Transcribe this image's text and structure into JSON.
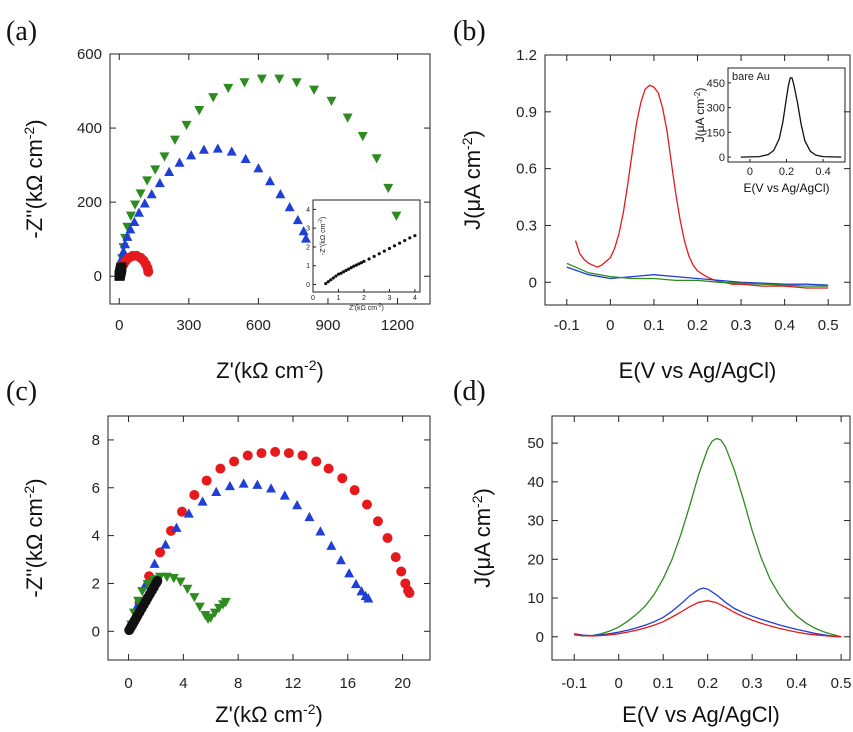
{
  "colors": {
    "red": "#e41a1c",
    "green": "#2e8b1f",
    "blue": "#1f3fd6",
    "black": "#111111"
  },
  "chart_data": [
    {
      "panel": "(a)",
      "type": "scatter",
      "xlabel": "Z'(kΩ cm⁻²)",
      "ylabel": "-Z''(kΩ cm⁻²)",
      "xticks": [
        0,
        300,
        600,
        900,
        1200
      ],
      "yticks": [
        0,
        200,
        400,
        600
      ],
      "xlim": [
        -40,
        1340
      ],
      "ylim": [
        -75,
        600
      ],
      "series": [
        {
          "color": "green",
          "marker": "triangle-down",
          "x": [
            5,
            8,
            12,
            18,
            25,
            35,
            50,
            68,
            92,
            120,
            155,
            195,
            240,
            290,
            345,
            405,
            470,
            540,
            615,
            690,
            765,
            840,
            915,
            985,
            1050,
            1110,
            1160,
            1195
          ],
          "y": [
            5,
            25,
            50,
            80,
            105,
            135,
            165,
            195,
            225,
            260,
            290,
            325,
            370,
            410,
            450,
            485,
            510,
            525,
            535,
            535,
            525,
            505,
            475,
            430,
            380,
            320,
            240,
            165
          ]
        },
        {
          "color": "blue",
          "marker": "triangle-up",
          "x": [
            3,
            5,
            8,
            12,
            18,
            25,
            35,
            48,
            65,
            85,
            110,
            140,
            175,
            215,
            260,
            310,
            365,
            425,
            485,
            545,
            600,
            650,
            695,
            735,
            770,
            795,
            805
          ],
          "y": [
            3,
            15,
            30,
            48,
            65,
            85,
            105,
            125,
            145,
            170,
            195,
            220,
            250,
            280,
            305,
            325,
            340,
            343,
            335,
            315,
            290,
            255,
            220,
            185,
            150,
            120,
            100
          ]
        },
        {
          "color": "red",
          "marker": "circle",
          "x": [
            2,
            5,
            10,
            18,
            28,
            42,
            58,
            75,
            92,
            105,
            115,
            122,
            125
          ],
          "y": [
            2,
            10,
            20,
            32,
            42,
            50,
            55,
            55,
            50,
            42,
            32,
            22,
            12
          ]
        },
        {
          "color": "black",
          "marker": "square",
          "x": [
            1,
            2,
            3,
            4,
            5,
            6,
            7,
            8,
            9
          ],
          "y": [
            1,
            3,
            6,
            9,
            12,
            15,
            18,
            21,
            24
          ]
        }
      ],
      "inset": {
        "xlabel": "Z'(kΩ cm⁻²)",
        "ylabel": "-Z''(kΩ cm⁻²)",
        "xticks": [
          0,
          1,
          2,
          3,
          4
        ],
        "yticks": [
          0,
          1,
          2,
          3,
          4
        ],
        "xlim": [
          0,
          4.2
        ],
        "ylim": [
          -0.4,
          4.5
        ],
        "x": [
          0.5,
          0.6,
          0.7,
          0.8,
          0.9,
          1.0,
          1.1,
          1.2,
          1.3,
          1.4,
          1.5,
          1.6,
          1.7,
          1.8,
          1.9,
          2.0,
          2.2,
          2.4,
          2.6,
          2.8,
          3.0,
          3.2,
          3.4,
          3.6,
          3.8,
          4.0
        ],
        "y": [
          0.05,
          0.15,
          0.25,
          0.35,
          0.45,
          0.55,
          0.6,
          0.68,
          0.75,
          0.82,
          0.9,
          0.97,
          1.03,
          1.1,
          1.16,
          1.23,
          1.36,
          1.5,
          1.64,
          1.78,
          1.92,
          2.06,
          2.2,
          2.34,
          2.48,
          2.6
        ]
      }
    },
    {
      "panel": "(b)",
      "type": "line",
      "xlabel": "E(V vs Ag/AgCl)",
      "ylabel": "J(μA cm⁻²)",
      "xticks": [
        -0.1,
        0.0,
        0.1,
        0.2,
        0.3,
        0.4,
        0.5
      ],
      "yticks": [
        0.0,
        0.3,
        0.6,
        0.9,
        1.2
      ],
      "xlim": [
        -0.15,
        0.55
      ],
      "ylim": [
        -0.12,
        1.2
      ],
      "series": [
        {
          "color": "red",
          "x": [
            -0.08,
            -0.07,
            -0.06,
            -0.05,
            -0.04,
            -0.03,
            -0.02,
            -0.01,
            0.0,
            0.01,
            0.02,
            0.03,
            0.04,
            0.05,
            0.06,
            0.07,
            0.08,
            0.09,
            0.1,
            0.11,
            0.12,
            0.13,
            0.14,
            0.15,
            0.16,
            0.17,
            0.18,
            0.19,
            0.2,
            0.22,
            0.24,
            0.26,
            0.28,
            0.3,
            0.35,
            0.4,
            0.45,
            0.5
          ],
          "y": [
            0.22,
            0.15,
            0.12,
            0.1,
            0.09,
            0.08,
            0.09,
            0.11,
            0.13,
            0.18,
            0.26,
            0.37,
            0.52,
            0.68,
            0.84,
            0.95,
            1.02,
            1.04,
            1.03,
            1.0,
            0.92,
            0.8,
            0.63,
            0.47,
            0.33,
            0.22,
            0.14,
            0.09,
            0.06,
            0.03,
            0.01,
            0.0,
            -0.01,
            -0.01,
            -0.02,
            -0.02,
            -0.03,
            -0.03
          ]
        },
        {
          "color": "blue",
          "x": [
            -0.1,
            -0.05,
            0.0,
            0.05,
            0.1,
            0.15,
            0.2,
            0.25,
            0.3,
            0.35,
            0.4,
            0.45,
            0.5
          ],
          "y": [
            0.08,
            0.04,
            0.02,
            0.03,
            0.04,
            0.03,
            0.02,
            0.01,
            0.0,
            -0.005,
            -0.01,
            -0.01,
            -0.015
          ]
        },
        {
          "color": "green",
          "x": [
            -0.1,
            -0.05,
            0.0,
            0.05,
            0.1,
            0.15,
            0.2,
            0.25,
            0.3,
            0.35,
            0.4,
            0.45,
            0.5
          ],
          "y": [
            0.1,
            0.05,
            0.03,
            0.02,
            0.02,
            0.01,
            0.01,
            0.0,
            -0.005,
            -0.01,
            -0.015,
            -0.02,
            -0.02
          ]
        }
      ],
      "inset": {
        "title": "bare Au",
        "xlabel": "E(V vs Ag/AgCl)",
        "ylabel": "J(μA cm⁻²)",
        "xticks": [
          0.0,
          0.2,
          0.4
        ],
        "yticks": [
          0,
          150,
          300,
          450
        ],
        "xlim": [
          -0.12,
          0.52
        ],
        "ylim": [
          -30,
          540
        ],
        "x": [
          -0.05,
          0.0,
          0.05,
          0.1,
          0.13,
          0.16,
          0.18,
          0.2,
          0.21,
          0.22,
          0.23,
          0.24,
          0.26,
          0.28,
          0.3,
          0.33,
          0.36,
          0.4,
          0.45,
          0.5
        ],
        "y": [
          0,
          1,
          3,
          15,
          40,
          110,
          210,
          360,
          430,
          480,
          480,
          440,
          330,
          200,
          100,
          35,
          12,
          3,
          1,
          0
        ]
      }
    },
    {
      "panel": "(c)",
      "type": "scatter",
      "xlabel": "Z'(kΩ cm⁻²)",
      "ylabel": "-Z''(kΩ cm⁻²)",
      "xticks": [
        0,
        4,
        8,
        12,
        16,
        20
      ],
      "yticks": [
        0,
        2,
        4,
        6,
        8
      ],
      "xlim": [
        -1.5,
        22
      ],
      "ylim": [
        -1.2,
        9
      ],
      "series": [
        {
          "color": "red",
          "marker": "circle",
          "x": [
            0.8,
            1.5,
            2.3,
            3.1,
            3.9,
            4.8,
            5.7,
            6.7,
            7.7,
            8.7,
            9.7,
            10.7,
            11.7,
            12.7,
            13.7,
            14.6,
            15.6,
            16.5,
            17.4,
            18.2,
            18.9,
            19.5,
            19.9,
            20.2,
            20.4,
            20.5
          ],
          "y": [
            1.2,
            2.3,
            3.3,
            4.2,
            5.0,
            5.7,
            6.3,
            6.8,
            7.1,
            7.35,
            7.45,
            7.5,
            7.45,
            7.35,
            7.1,
            6.8,
            6.4,
            5.9,
            5.3,
            4.6,
            3.9,
            3.1,
            2.5,
            2.0,
            1.7,
            1.6
          ]
        },
        {
          "color": "blue",
          "marker": "triangle-up",
          "x": [
            0.6,
            1.2,
            1.9,
            2.7,
            3.5,
            4.4,
            5.4,
            6.4,
            7.4,
            8.4,
            9.4,
            10.4,
            11.4,
            12.3,
            13.2,
            14.0,
            14.8,
            15.5,
            16.1,
            16.6,
            17.0,
            17.3,
            17.5
          ],
          "y": [
            1.0,
            1.9,
            2.8,
            3.6,
            4.3,
            4.9,
            5.4,
            5.8,
            6.05,
            6.15,
            6.1,
            5.95,
            5.65,
            5.25,
            4.75,
            4.15,
            3.55,
            2.95,
            2.4,
            1.95,
            1.65,
            1.45,
            1.35
          ]
        },
        {
          "color": "green",
          "marker": "triangle-down",
          "x": [
            0.2,
            0.4,
            0.7,
            1.0,
            1.4,
            1.8,
            2.3,
            2.8,
            3.3,
            3.8,
            4.3,
            4.8,
            5.2,
            5.6,
            5.8,
            6.0,
            6.3,
            6.6,
            6.9,
            7.1
          ],
          "y": [
            0.3,
            0.8,
            1.3,
            1.7,
            2.0,
            2.2,
            2.3,
            2.3,
            2.25,
            2.1,
            1.8,
            1.45,
            1.05,
            0.7,
            0.55,
            0.6,
            0.8,
            1.0,
            1.15,
            1.25
          ]
        },
        {
          "color": "black",
          "marker": "circle",
          "x": [
            0.05,
            0.15,
            0.25,
            0.35,
            0.45,
            0.55,
            0.65,
            0.8,
            0.95,
            1.1,
            1.25,
            1.4,
            1.55,
            1.7,
            1.85,
            2.0,
            2.1
          ],
          "y": [
            0.05,
            0.15,
            0.25,
            0.35,
            0.45,
            0.55,
            0.65,
            0.8,
            0.95,
            1.1,
            1.25,
            1.4,
            1.55,
            1.7,
            1.85,
            2.0,
            2.1
          ]
        }
      ]
    },
    {
      "panel": "(d)",
      "type": "line",
      "xlabel": "E(V vs Ag/AgCl)",
      "ylabel": "J(μA cm⁻²)",
      "xticks": [
        -0.1,
        0.0,
        0.1,
        0.2,
        0.3,
        0.4,
        0.5
      ],
      "yticks": [
        0,
        10,
        20,
        30,
        40,
        50
      ],
      "xlim": [
        -0.15,
        0.52
      ],
      "ylim": [
        -6,
        57
      ],
      "series": [
        {
          "color": "green",
          "x": [
            -0.1,
            -0.08,
            -0.06,
            -0.04,
            -0.02,
            0.0,
            0.02,
            0.04,
            0.06,
            0.08,
            0.1,
            0.12,
            0.14,
            0.16,
            0.18,
            0.2,
            0.21,
            0.22,
            0.23,
            0.24,
            0.26,
            0.28,
            0.3,
            0.32,
            0.34,
            0.36,
            0.38,
            0.4,
            0.42,
            0.44,
            0.46,
            0.48,
            0.5
          ],
          "y": [
            0.5,
            0.2,
            0.3,
            0.8,
            1.5,
            2.5,
            4.0,
            5.8,
            8.0,
            11.0,
            15.0,
            20.0,
            26.5,
            34.0,
            42.0,
            48.5,
            50.5,
            51.2,
            50.8,
            49.0,
            43.0,
            35.5,
            27.5,
            20.5,
            15.0,
            11.0,
            7.8,
            5.4,
            3.6,
            2.3,
            1.3,
            0.6,
            0.0
          ]
        },
        {
          "color": "blue",
          "x": [
            -0.1,
            -0.08,
            -0.06,
            -0.04,
            -0.02,
            0.0,
            0.02,
            0.04,
            0.06,
            0.08,
            0.1,
            0.12,
            0.14,
            0.16,
            0.18,
            0.19,
            0.2,
            0.22,
            0.24,
            0.26,
            0.28,
            0.3,
            0.32,
            0.34,
            0.36,
            0.38,
            0.4,
            0.42,
            0.44,
            0.46,
            0.48,
            0.5
          ],
          "y": [
            0.8,
            0.4,
            0.3,
            0.5,
            0.8,
            1.2,
            1.7,
            2.3,
            3.0,
            3.9,
            5.0,
            6.6,
            8.5,
            10.6,
            12.2,
            12.6,
            12.3,
            10.8,
            8.9,
            7.3,
            6.2,
            5.3,
            4.5,
            3.8,
            3.1,
            2.5,
            1.9,
            1.4,
            0.9,
            0.5,
            0.2,
            0.0
          ]
        },
        {
          "color": "red",
          "x": [
            -0.1,
            -0.08,
            -0.06,
            -0.04,
            -0.02,
            0.0,
            0.02,
            0.04,
            0.06,
            0.08,
            0.1,
            0.12,
            0.14,
            0.16,
            0.18,
            0.2,
            0.22,
            0.24,
            0.26,
            0.28,
            0.3,
            0.32,
            0.34,
            0.36,
            0.38,
            0.4,
            0.42,
            0.44,
            0.46,
            0.48,
            0.5
          ],
          "y": [
            0.6,
            0.3,
            0.2,
            0.3,
            0.5,
            0.8,
            1.2,
            1.7,
            2.3,
            3.0,
            3.9,
            5.1,
            6.4,
            7.8,
            8.9,
            9.3,
            8.8,
            7.6,
            6.3,
            5.2,
            4.3,
            3.5,
            2.8,
            2.2,
            1.7,
            1.2,
            0.8,
            0.5,
            0.3,
            0.1,
            0.0
          ]
        }
      ]
    }
  ]
}
